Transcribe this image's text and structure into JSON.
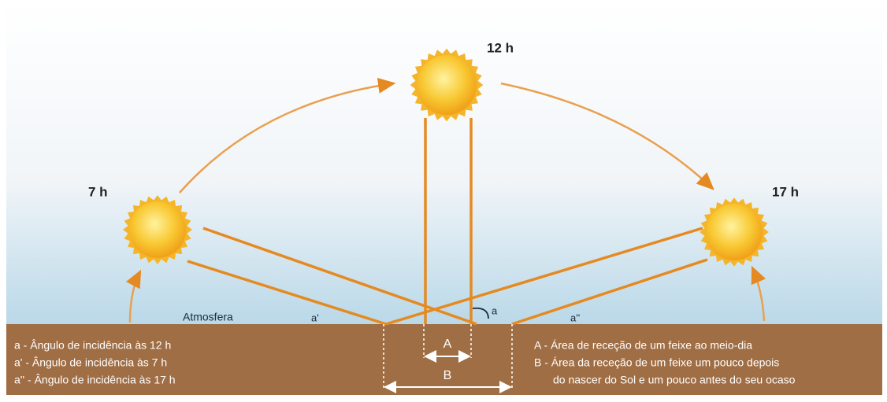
{
  "suns": [
    {
      "label": "7 h"
    },
    {
      "label": "12 h"
    },
    {
      "label": "17 h"
    }
  ],
  "atmosphere": "Atmosfera",
  "angles": [
    "a",
    "a'",
    "a''"
  ],
  "areas": [
    "A",
    "B"
  ],
  "legend_left": [
    "a - Ângulo de incidência às 12 h",
    "a' - Ângulo de incidência às 7 h",
    "a'' - Ângulo de incidência às 17 h"
  ],
  "legend_right": [
    "A - Área de receção de um feixe ao meio-dia",
    "B - Área da receção de um feixe um pouco depois",
    "do nascer do Sol e um pouco antes do seu ocaso"
  ]
}
